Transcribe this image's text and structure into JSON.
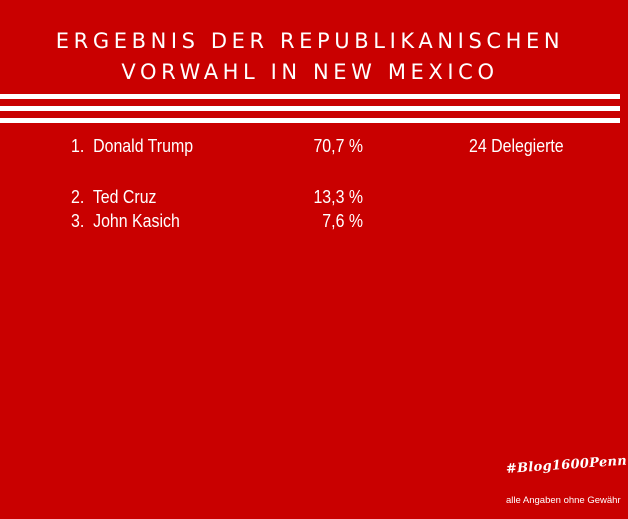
{
  "title": {
    "line1": "ERGEBNIS DER REPUBLIKANISCHEN",
    "line2": "VORWAHL IN NEW MEXICO"
  },
  "results": [
    {
      "rank": "1.",
      "name": "Donald Trump",
      "percent": "70,7 %",
      "delegates": "24 Delegierte"
    },
    {
      "rank": "2.",
      "name": "Ted Cruz",
      "percent": "13,3 %"
    },
    {
      "rank": "3.",
      "name": "John Kasich",
      "percent": "7,6 %"
    }
  ],
  "footer": {
    "signature": "#Blog1600Penn",
    "disclaimer": "alle Angaben ohne Gewähr"
  },
  "colors": {
    "background": "#c90000",
    "foreground": "#ffffff"
  }
}
